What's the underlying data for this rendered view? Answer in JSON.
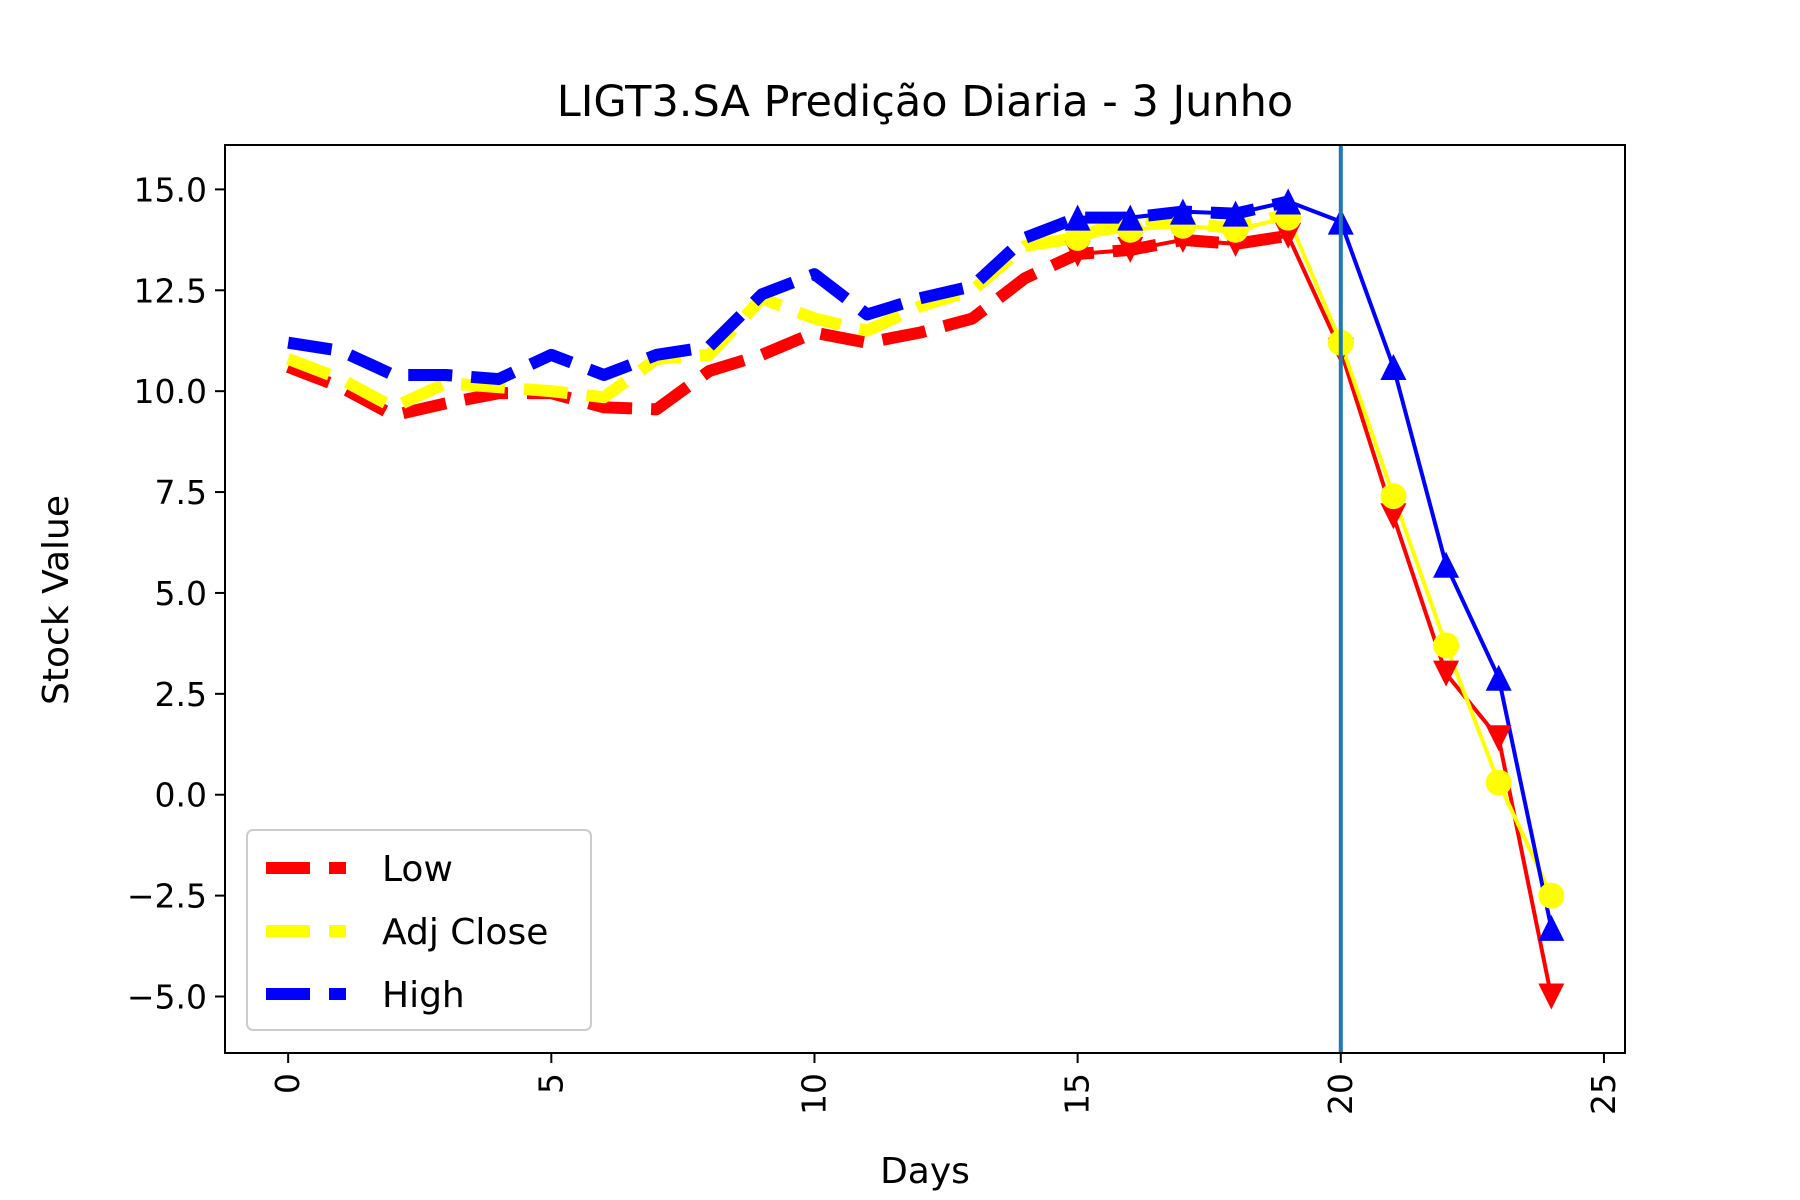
{
  "chart_data": {
    "type": "line",
    "title": "LIGT3.SA Predição Diaria - 3 Junho",
    "xlabel": "Days",
    "ylabel": "Stock Value",
    "xlim": [
      -1.2,
      25.4
    ],
    "ylim": [
      -6.4,
      16.1
    ],
    "xticks": [
      0,
      5,
      10,
      15,
      20,
      25
    ],
    "yticks": [
      15.0,
      12.5,
      10.0,
      7.5,
      5.0,
      2.5,
      0.0,
      -2.5,
      -5.0
    ],
    "ytick_labels": [
      "15.0",
      "12.5",
      "10.0",
      "7.5",
      "5.0",
      "2.5",
      "0.0",
      "−2.5",
      "−5.0"
    ],
    "grid": false,
    "legend_position": "lower-left",
    "vline": {
      "x": 20,
      "color": "#1f77b4"
    },
    "series": [
      {
        "name": "Low",
        "color": "#ff0000",
        "marker": "triangle-down",
        "historical": {
          "x": [
            0,
            1,
            2,
            3,
            4,
            5,
            6,
            7,
            8,
            9,
            10,
            11,
            12,
            13,
            14,
            15,
            16,
            17,
            18,
            19
          ],
          "y": [
            10.6,
            10.1,
            9.4,
            9.7,
            9.95,
            9.95,
            9.6,
            9.55,
            10.5,
            10.9,
            11.45,
            11.2,
            11.45,
            11.8,
            12.8,
            13.4,
            13.5,
            13.75,
            13.65,
            13.85
          ]
        },
        "prediction": {
          "x": [
            15,
            16,
            17,
            18,
            19,
            20,
            21,
            22,
            23,
            24
          ],
          "y": [
            13.4,
            13.5,
            13.75,
            13.65,
            13.85,
            11.0,
            6.9,
            3.0,
            1.4,
            -5.0
          ]
        }
      },
      {
        "name": "Adj Close",
        "color": "#ffff00",
        "marker": "circle",
        "historical": {
          "x": [
            0,
            1,
            2,
            3,
            4,
            5,
            6,
            7,
            8,
            9,
            10,
            11,
            12,
            13,
            14,
            15,
            16,
            17,
            18,
            19
          ],
          "y": [
            10.8,
            10.3,
            9.6,
            10.2,
            10.1,
            10.0,
            9.85,
            10.8,
            10.9,
            12.3,
            11.8,
            11.5,
            12.1,
            12.5,
            13.6,
            13.8,
            14.3,
            14.15,
            14.05,
            14.4
          ]
        },
        "prediction": {
          "x": [
            15,
            16,
            17,
            18,
            19,
            20,
            21,
            22,
            23,
            24
          ],
          "y": [
            13.8,
            14.0,
            14.1,
            14.0,
            14.3,
            11.2,
            7.4,
            3.7,
            0.3,
            -2.5
          ]
        }
      },
      {
        "name": "High",
        "color": "#0000ff",
        "marker": "triangle-up",
        "historical": {
          "x": [
            0,
            1,
            2,
            3,
            4,
            5,
            6,
            7,
            8,
            9,
            10,
            11,
            12,
            13,
            14,
            15,
            16,
            17,
            18,
            19
          ],
          "y": [
            11.2,
            11.0,
            10.4,
            10.4,
            10.3,
            10.9,
            10.4,
            10.9,
            11.1,
            12.4,
            12.9,
            11.9,
            12.3,
            12.6,
            13.8,
            14.3,
            14.3,
            14.45,
            14.4,
            14.7
          ]
        },
        "prediction": {
          "x": [
            15,
            16,
            17,
            18,
            19,
            20,
            21,
            22,
            23,
            24
          ],
          "y": [
            14.3,
            14.3,
            14.45,
            14.4,
            14.7,
            14.2,
            10.6,
            5.7,
            2.9,
            -3.3
          ]
        }
      }
    ]
  }
}
